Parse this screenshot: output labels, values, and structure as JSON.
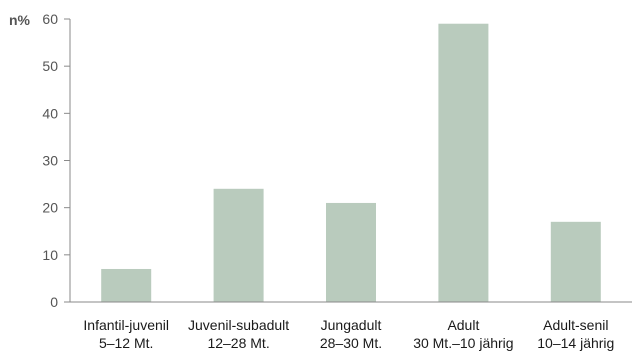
{
  "chart_data": {
    "type": "bar",
    "ylabel": "n%",
    "ylim": [
      0,
      60
    ],
    "yticks": [
      0,
      10,
      20,
      30,
      40,
      50,
      60
    ],
    "categories": [
      [
        "Infantil-juvenil",
        "5–12 Mt."
      ],
      [
        "Juvenil-subadult",
        "12–28 Mt."
      ],
      [
        "Jungadult",
        "28–30 Mt."
      ],
      [
        "Adult",
        "30 Mt.–10 jährig"
      ],
      [
        "Adult-senil",
        "10–14 jährig"
      ]
    ],
    "values": [
      7,
      24,
      21,
      59,
      17
    ],
    "bar_color": "#b9cbbd",
    "axis_color": "#8a8a8a",
    "grid": false
  }
}
